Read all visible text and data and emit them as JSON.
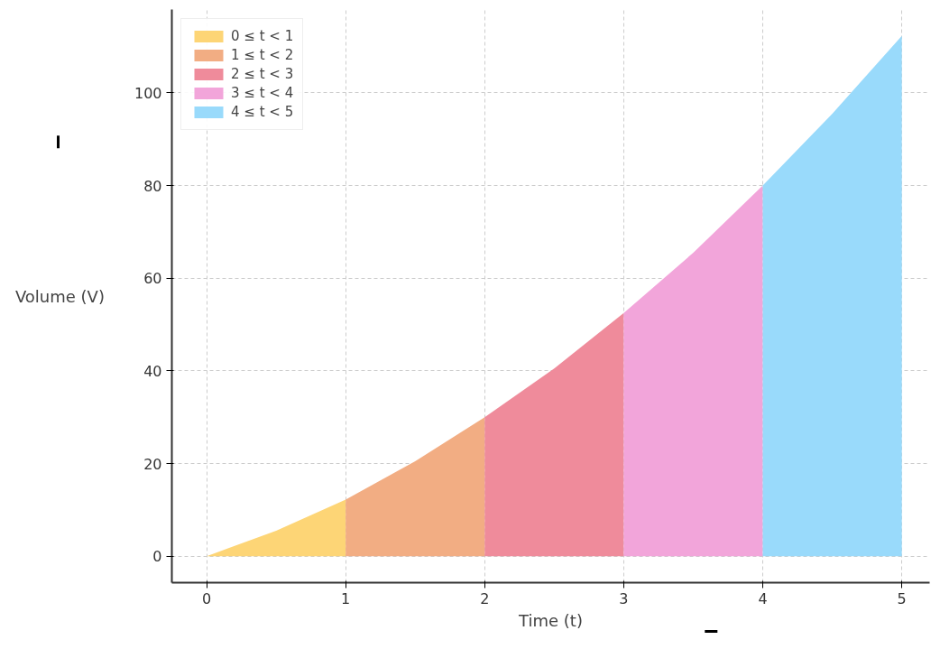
{
  "chart_data": {
    "type": "area",
    "xlabel": "Time (t)",
    "ylabel": "Volume (V)",
    "xlim": [
      -0.25,
      5.2
    ],
    "ylim": [
      -5.7,
      118
    ],
    "xticks": [
      0,
      1,
      2,
      3,
      4,
      5
    ],
    "yticks": [
      0,
      20,
      40,
      60,
      80,
      100
    ],
    "grid": true,
    "legend": "top left",
    "series": [
      {
        "name": "0 ≤ t < 1",
        "color": "#fdd576",
        "x": [
          0,
          0.5,
          1
        ],
        "values": [
          0,
          5.5,
          12.2
        ]
      },
      {
        "name": "1 ≤ t < 2",
        "color": "#f2ad83",
        "x": [
          1,
          1.5,
          2
        ],
        "values": [
          12.2,
          20.5,
          30
        ]
      },
      {
        "name": "2 ≤ t < 3",
        "color": "#ef8b9b",
        "x": [
          2,
          2.5,
          3
        ],
        "values": [
          30,
          40.5,
          52.5
        ]
      },
      {
        "name": "3 ≤ t < 4",
        "color": "#f2a5da",
        "x": [
          3,
          3.5,
          4
        ],
        "values": [
          52.5,
          65.5,
          80
        ]
      },
      {
        "name": "4 ≤ t < 5",
        "color": "#99dafb",
        "x": [
          4,
          4.5,
          5
        ],
        "values": [
          80,
          95.5,
          112.3
        ]
      }
    ]
  }
}
